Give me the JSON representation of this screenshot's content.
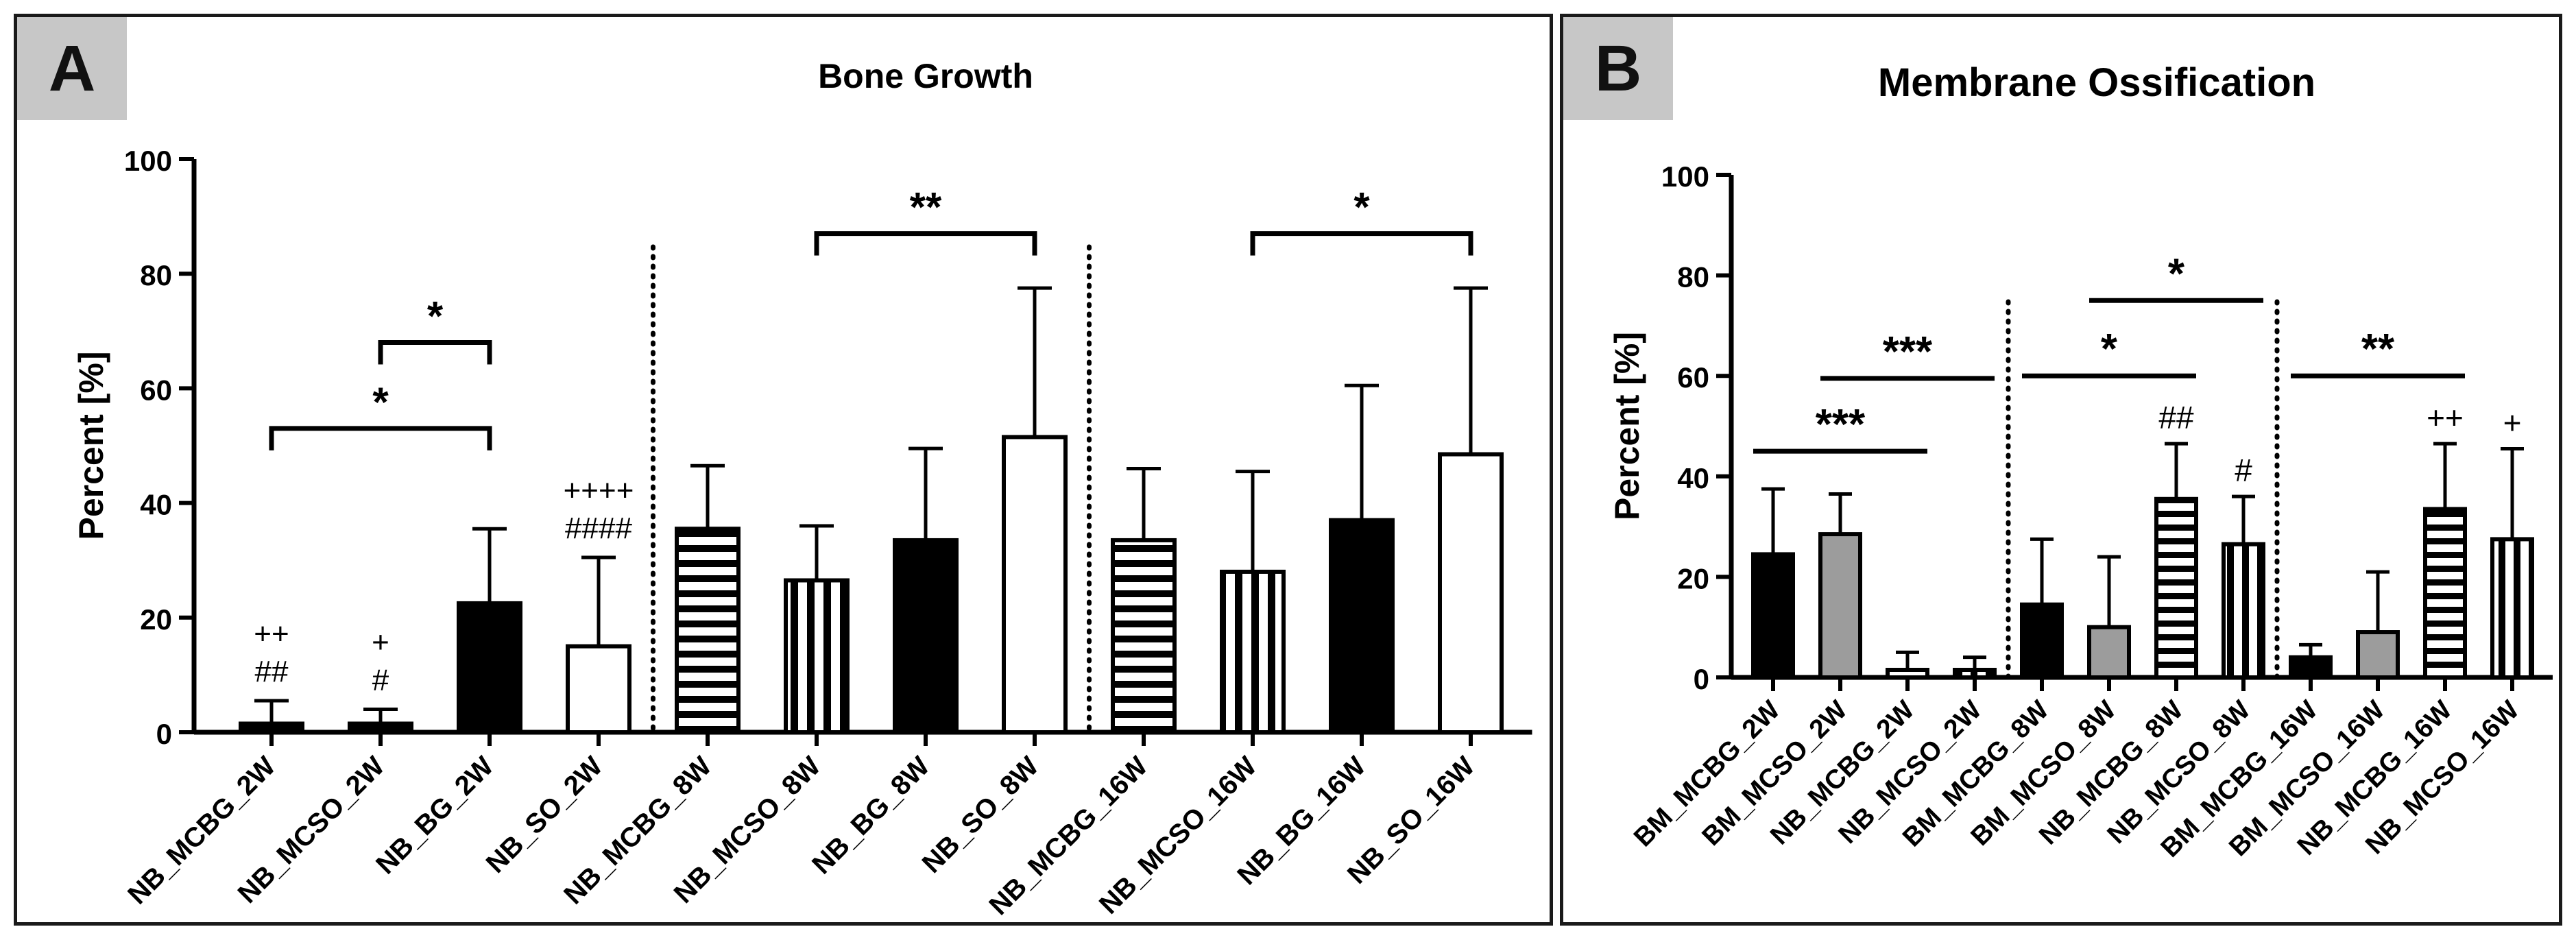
{
  "chart_data": [
    {
      "panel": "A",
      "type": "bar",
      "title": "Bone Growth",
      "ylabel": "Percent [%]",
      "xlabel": "",
      "ylim": [
        0,
        100
      ],
      "yticks": [
        0,
        20,
        40,
        60,
        80,
        100
      ],
      "categories": [
        "NB_MCBG_2W",
        "NB_MCSO_2W",
        "NB_BG_2W",
        "NB_SO_2W",
        "NB_MCBG_8W",
        "NB_MCSO_8W",
        "NB_BG_8W",
        "NB_SO_8W",
        "NB_MCBG_16W",
        "NB_MCSO_16W",
        "NB_BG_16W",
        "NB_SO_16W"
      ],
      "values": [
        1.5,
        1.5,
        22.5,
        15,
        35.5,
        26.5,
        33.5,
        51.5,
        33.5,
        28,
        37,
        48.5
      ],
      "errors": [
        4,
        2.5,
        13,
        15.5,
        11,
        9.5,
        16,
        26,
        12.5,
        17.5,
        23.5,
        29
      ],
      "patterns": [
        "solid",
        "solid",
        "solid",
        "white",
        "hlines",
        "vlines",
        "solid",
        "white",
        "hlines",
        "vlines",
        "solid",
        "white"
      ],
      "group_separators_after": [
        3,
        7
      ],
      "brackets": [
        {
          "from": 0,
          "to": 2,
          "level": 53,
          "label": "*"
        },
        {
          "from": 1,
          "to": 2,
          "level": 68,
          "label": "*"
        },
        {
          "from": 5,
          "to": 7,
          "level": 87,
          "label": "**"
        },
        {
          "from": 9,
          "to": 11,
          "level": 87,
          "label": "*"
        }
      ],
      "bar_annotations": [
        {
          "index": 0,
          "lines": [
            "++",
            "##"
          ]
        },
        {
          "index": 1,
          "lines": [
            "+",
            "#"
          ]
        },
        {
          "index": 3,
          "lines": [
            "++++",
            "####"
          ]
        }
      ]
    },
    {
      "panel": "B",
      "type": "bar",
      "title": "Membrane Ossification",
      "ylabel": "Percent [%]",
      "xlabel": "",
      "ylim": [
        0,
        100
      ],
      "yticks": [
        0,
        20,
        40,
        60,
        80,
        100
      ],
      "categories": [
        "BM_MCBG_2W",
        "BM_MCSO_2W",
        "NB_MCBG_2W",
        "NB_MCSO_2W",
        "BM_MCBG_8W",
        "BM_MCSO_8W",
        "NB_MCBG_8W",
        "NB_MCSO_8W",
        "BM_MCBG_16W",
        "BM_MCSO_16W",
        "NB_MCBG_16W",
        "NB_MCSO_16W"
      ],
      "values": [
        24.5,
        28.5,
        1.5,
        1.5,
        14.5,
        10,
        35.5,
        26.5,
        4,
        9,
        33.5,
        27.5
      ],
      "errors": [
        13,
        8,
        3.5,
        2.5,
        13,
        14,
        11,
        9.5,
        2.5,
        12,
        13,
        18
      ],
      "patterns": [
        "solid",
        "gray",
        "hlines",
        "vlines",
        "solid",
        "gray",
        "hlines",
        "vlines",
        "solid",
        "gray",
        "hlines",
        "vlines"
      ],
      "group_separators_after": [
        3,
        7
      ],
      "lines": [
        {
          "from": 0,
          "to": 2,
          "level": 45,
          "label": "***"
        },
        {
          "from": 1,
          "to": 3,
          "level": 59.5,
          "label": "***"
        },
        {
          "from": 4,
          "to": 6,
          "level": 60,
          "label": "*"
        },
        {
          "from": 5,
          "to": 7,
          "level": 75,
          "label": "*"
        },
        {
          "from": 8,
          "to": 10,
          "level": 60,
          "label": "**"
        }
      ],
      "bar_annotations": [
        {
          "index": 6,
          "lines": [
            "##"
          ]
        },
        {
          "index": 7,
          "lines": [
            "#"
          ]
        },
        {
          "index": 10,
          "lines": [
            "++"
          ]
        },
        {
          "index": 11,
          "lines": [
            "+"
          ]
        }
      ]
    }
  ],
  "colors": {
    "bar_fill": "#000000",
    "bar_gray": "#9c9c9c",
    "open_fill": "#ffffff",
    "panel_label_bg": "#c7c7c7",
    "axis": "#000000"
  }
}
